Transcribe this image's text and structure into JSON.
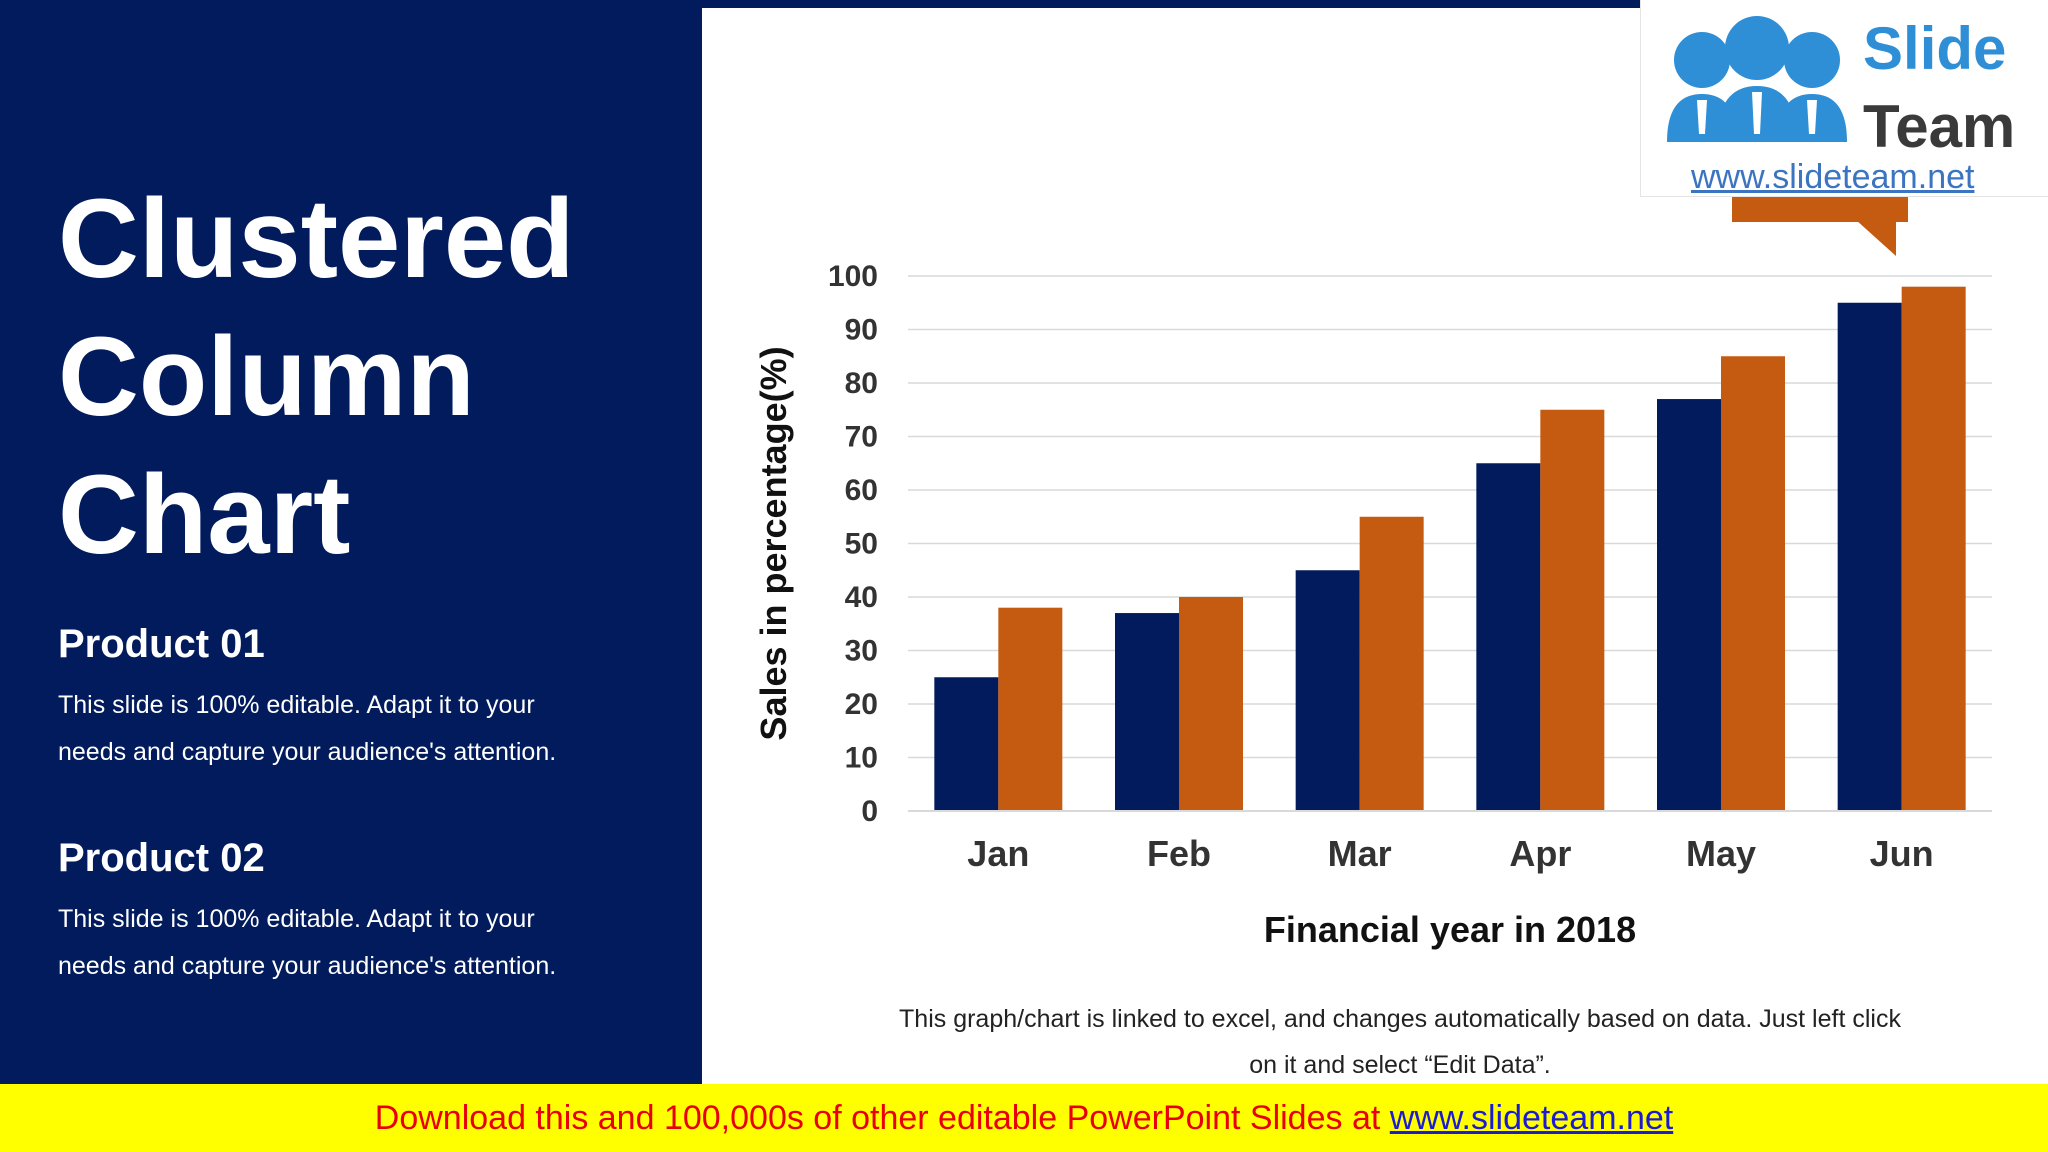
{
  "slide": {
    "title_lines": [
      "Clustered",
      "Column",
      "Chart"
    ],
    "products": [
      {
        "heading": "Product 01",
        "text_lines": [
          "This slide is 100% editable. Adapt it to your",
          "needs and capture your audience's attention."
        ]
      },
      {
        "heading": "Product 02",
        "text_lines": [
          "This slide is 100% editable. Adapt it to your",
          "needs and capture your audience's attention."
        ]
      }
    ],
    "caption_lines": [
      "This graph/chart is linked to excel, and changes automatically based on data. Just left click",
      "on it and select “Edit Data”."
    ]
  },
  "footer": {
    "text": "Download this and 100,000s of other editable PowerPoint Slides at ",
    "link": "www.slideteam.net"
  },
  "logo": {
    "word1": "Slide",
    "word2": "Team",
    "url": "www.slideteam.net"
  },
  "colors": {
    "navy": "#021b5c",
    "orange": "#c55a11",
    "footer_bg": "#ffff00",
    "footer_text": "#e8000b"
  },
  "chart_data": {
    "type": "bar",
    "categories": [
      "Jan",
      "Feb",
      "Mar",
      "Apr",
      "May",
      "Jun"
    ],
    "series": [
      {
        "color": "#021b5c",
        "values": [
          25,
          37,
          45,
          65,
          77,
          95
        ]
      },
      {
        "color": "#c55a11",
        "values": [
          38,
          40,
          55,
          75,
          85,
          98
        ]
      }
    ],
    "xlabel": "Financial year in 2018",
    "ylabel": "Sales in percentage(%)",
    "ylim": [
      0,
      100
    ],
    "yticks": [
      0,
      10,
      20,
      30,
      40,
      50,
      60,
      70,
      80,
      90,
      100
    ],
    "grid": true
  }
}
